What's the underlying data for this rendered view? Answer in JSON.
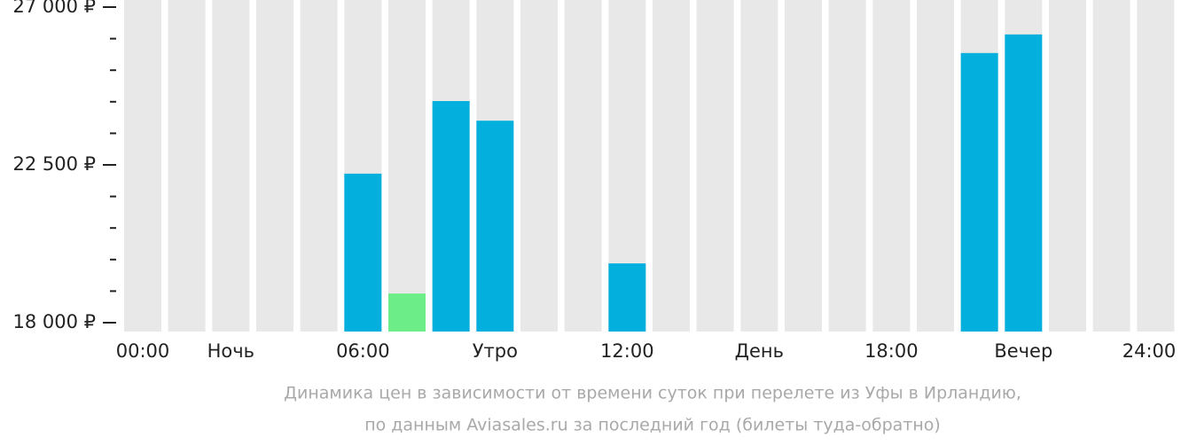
{
  "chart_data": {
    "type": "bar",
    "categories": [
      "00:00",
      null,
      "Ночь",
      null,
      null,
      "06:00",
      null,
      null,
      "Утро",
      null,
      null,
      "12:00",
      null,
      null,
      "День",
      null,
      null,
      "18:00",
      null,
      null,
      "Вечер",
      null,
      null,
      "24:00"
    ],
    "values": [
      null,
      null,
      null,
      null,
      null,
      22250,
      18830,
      24320,
      23760,
      null,
      null,
      19690,
      null,
      null,
      null,
      null,
      null,
      null,
      null,
      25690,
      26220,
      null,
      null,
      null
    ],
    "color": "#03b0dd",
    "min_color": "#6ced88",
    "slot_color": "#e8e8e8",
    "ylim": [
      18000,
      27000
    ],
    "yticks": [
      {
        "value": 18000,
        "label": "18 000 ₽"
      },
      {
        "value": 22500,
        "label": "22 500 ₽"
      },
      {
        "value": 27000,
        "label": "27 000 ₽"
      }
    ],
    "yminorticks": [
      18900,
      19800,
      20700,
      21600,
      23400,
      24300,
      25200,
      26100
    ],
    "caption": [
      "Динамика цен в зависимости от времени суток при перелете из Уфы в Ирландию,",
      "по данным Aviasales.ru за последний год (билеты туда-обратно)"
    ]
  }
}
